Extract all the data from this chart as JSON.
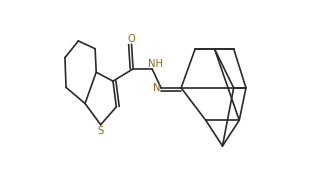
{
  "bg": "#ffffff",
  "lc": "#2a2a2a",
  "sc": "#8B6914",
  "lw": 1.2,
  "fs": 7.2,
  "xlim": [
    -0.03,
    0.9
  ],
  "ylim": [
    0.1,
    0.85
  ]
}
